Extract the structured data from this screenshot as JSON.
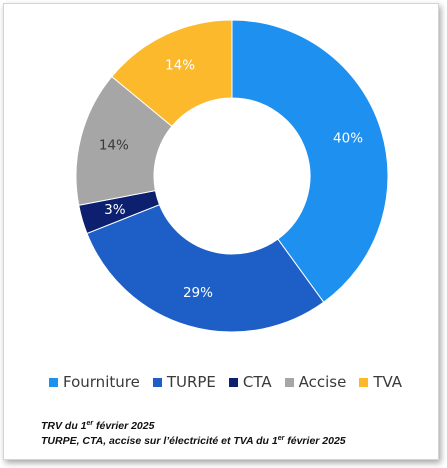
{
  "chart_data": {
    "type": "pie",
    "donut": true,
    "title": "",
    "categories": [
      "Fourniture",
      "TURPE",
      "CTA",
      "Accise",
      "TVA"
    ],
    "values": [
      40,
      29,
      3,
      14,
      14
    ],
    "value_labels": [
      "40%",
      "29%",
      "3%",
      "14%",
      "14%"
    ],
    "colors": [
      "#1e90f0",
      "#1d5fc7",
      "#0d2070",
      "#a6a6a6",
      "#fbb92b"
    ],
    "label_colors": [
      "#ffffff",
      "#ffffff",
      "#ffffff",
      "#3a3a3a",
      "#ffffff"
    ],
    "start_angle_deg": 0,
    "direction": "clockwise",
    "legend_position": "bottom"
  },
  "notes": {
    "line1_pre": "TRV du 1",
    "line1_sup": "er",
    "line1_post": " février 2025",
    "line2_pre": "TURPE, CTA, accise sur l’électricité et TVA du 1",
    "line2_sup": "er",
    "line2_post": " février 2025"
  }
}
